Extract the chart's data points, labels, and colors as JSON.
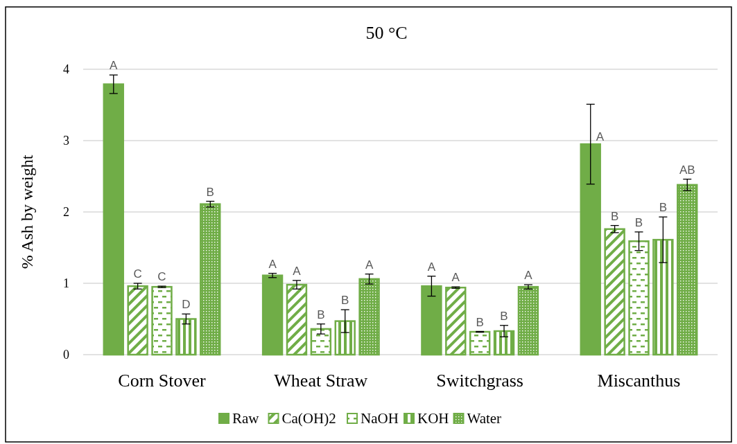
{
  "chart_data": {
    "type": "bar",
    "title": "50 °C",
    "ylabel": "% Ash by weight",
    "categories": [
      "Corn Stover",
      "Wheat Straw",
      "Switchgrass",
      "Miscanthus"
    ],
    "series": [
      {
        "name": "Raw",
        "color": "#70ad47",
        "values": [
          3.79,
          1.11,
          0.96,
          2.95
        ],
        "errors": [
          0.13,
          0.03,
          0.14,
          0.56
        ],
        "value_labels": [
          "A",
          "A",
          "A",
          "A"
        ]
      },
      {
        "name": "Ca(OH)2",
        "color": "#70ad47",
        "values": [
          0.96,
          0.98,
          0.94,
          1.76
        ],
        "errors": [
          0.04,
          0.06,
          0.01,
          0.05
        ],
        "value_labels": [
          "C",
          "A",
          "A",
          "B"
        ]
      },
      {
        "name": "NaOH",
        "color": "#70ad47",
        "values": [
          0.95,
          0.36,
          0.32,
          1.59
        ],
        "errors": [
          0.01,
          0.07,
          0.005,
          0.13
        ],
        "value_labels": [
          "C",
          "B",
          "B",
          "B"
        ]
      },
      {
        "name": "KOH",
        "color": "#70ad47",
        "values": [
          0.5,
          0.47,
          0.33,
          1.61
        ],
        "errors": [
          0.07,
          0.16,
          0.08,
          0.32
        ],
        "value_labels": [
          "D",
          "B",
          "B",
          "B"
        ]
      },
      {
        "name": "Water",
        "color": "#70ad47",
        "values": [
          2.11,
          1.06,
          0.95,
          2.38
        ],
        "errors": [
          0.04,
          0.07,
          0.03,
          0.08
        ],
        "value_labels": [
          "B",
          "A",
          "A",
          "AB"
        ]
      }
    ],
    "ylim": [
      0,
      4
    ],
    "yticks": [
      0,
      1,
      2,
      3,
      4
    ],
    "grid": "y",
    "legend": "bottom"
  }
}
